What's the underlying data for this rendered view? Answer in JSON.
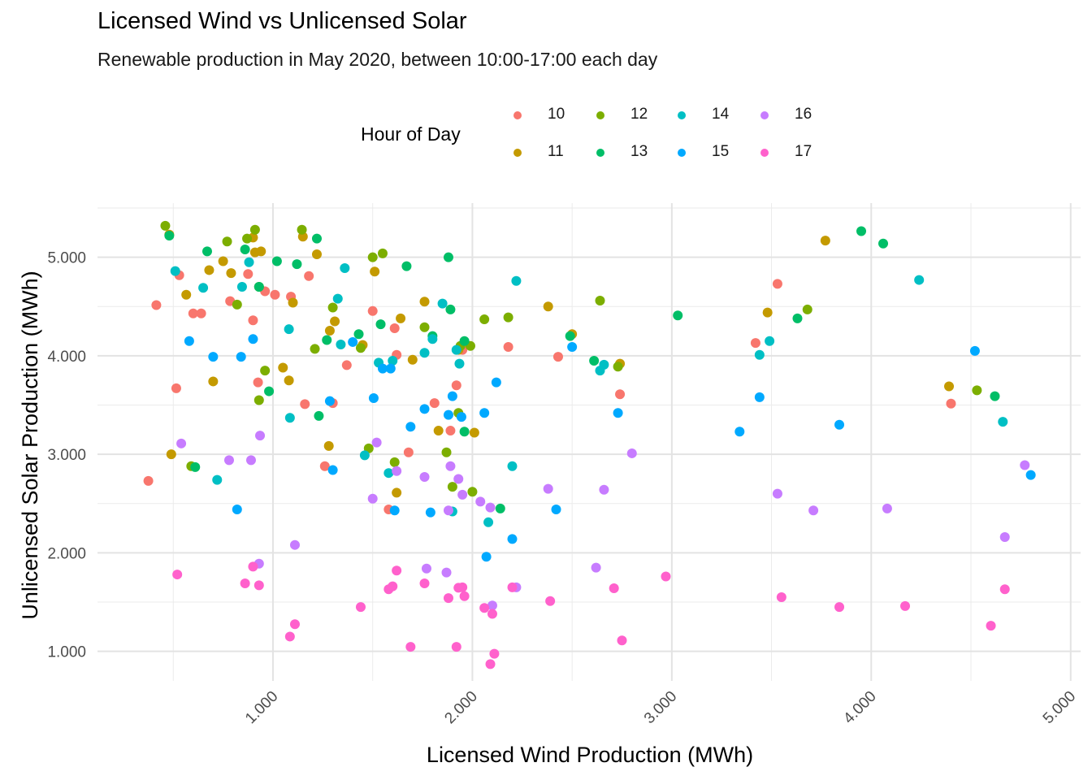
{
  "chart_data": {
    "type": "scatter",
    "title": "Licensed Wind vs Unlicensed Solar",
    "subtitle": "Renewable production in May 2020, between 10:00-17:00 each day",
    "xlabel": "Licensed Wind Production (MWh)",
    "ylabel": "Unlicensed Solar Production (MWh)",
    "xlim": [
      120,
      5050
    ],
    "ylim": [
      700,
      5550
    ],
    "x_ticks": [
      1000,
      2000,
      3000,
      4000,
      5000
    ],
    "x_tick_labels": [
      "1.000",
      "2.000",
      "3.000",
      "4.000",
      "5.000"
    ],
    "y_ticks": [
      1000,
      2000,
      3000,
      4000,
      5000
    ],
    "y_tick_labels": [
      "1.000",
      "2.000",
      "3.000",
      "4.000",
      "5.000"
    ],
    "grid": true,
    "legend": {
      "title": "Hour of Day",
      "position": "top",
      "items": [
        {
          "label": "10",
          "color": "#F8766D"
        },
        {
          "label": "11",
          "color": "#C49A00"
        },
        {
          "label": "12",
          "color": "#7CAE00"
        },
        {
          "label": "13",
          "color": "#00BE67"
        },
        {
          "label": "14",
          "color": "#00BFC4"
        },
        {
          "label": "15",
          "color": "#00A9FF"
        },
        {
          "label": "16",
          "color": "#C77CFF"
        },
        {
          "label": "17",
          "color": "#FF61CC"
        }
      ]
    },
    "series": [
      {
        "name": "10",
        "color": "#F8766D",
        "points": [
          [
            375,
            2730
          ],
          [
            415,
            4515
          ],
          [
            530,
            4818
          ],
          [
            600,
            4430
          ],
          [
            640,
            4430
          ],
          [
            515,
            3670
          ],
          [
            785,
            4555
          ],
          [
            875,
            4830
          ],
          [
            960,
            4655
          ],
          [
            900,
            4360
          ],
          [
            925,
            3730
          ],
          [
            1010,
            4620
          ],
          [
            1090,
            4600
          ],
          [
            1180,
            4810
          ],
          [
            1160,
            3510
          ],
          [
            1260,
            2880
          ],
          [
            1300,
            3520
          ],
          [
            1370,
            3905
          ],
          [
            1500,
            4455
          ],
          [
            1610,
            4280
          ],
          [
            1620,
            4010
          ],
          [
            1580,
            2440
          ],
          [
            1680,
            3020
          ],
          [
            1810,
            3520
          ],
          [
            1890,
            3240
          ],
          [
            1920,
            3700
          ],
          [
            1950,
            4060
          ],
          [
            2180,
            4090
          ],
          [
            2430,
            3990
          ],
          [
            2740,
            3610
          ],
          [
            3420,
            4130
          ],
          [
            3530,
            4730
          ],
          [
            4400,
            3515
          ]
        ]
      },
      {
        "name": "11",
        "color": "#C49A00",
        "points": [
          [
            480,
            5230
          ],
          [
            490,
            3000
          ],
          [
            565,
            4620
          ],
          [
            680,
            4870
          ],
          [
            700,
            3740
          ],
          [
            750,
            4960
          ],
          [
            790,
            4840
          ],
          [
            900,
            5200
          ],
          [
            910,
            5050
          ],
          [
            940,
            5060
          ],
          [
            1050,
            3880
          ],
          [
            1080,
            3750
          ],
          [
            1100,
            4540
          ],
          [
            1150,
            5210
          ],
          [
            1220,
            5030
          ],
          [
            1285,
            4255
          ],
          [
            1310,
            4350
          ],
          [
            1280,
            3085
          ],
          [
            1450,
            4110
          ],
          [
            1510,
            4855
          ],
          [
            1640,
            4380
          ],
          [
            1700,
            3960
          ],
          [
            1760,
            4550
          ],
          [
            1830,
            3240
          ],
          [
            1930,
            4060
          ],
          [
            2010,
            3220
          ],
          [
            2380,
            4500
          ],
          [
            2500,
            4220
          ],
          [
            2740,
            3920
          ],
          [
            3480,
            4440
          ],
          [
            3770,
            5170
          ],
          [
            4390,
            3690
          ],
          [
            1620,
            2610
          ]
        ]
      },
      {
        "name": "12",
        "color": "#7CAE00",
        "points": [
          [
            460,
            5320
          ],
          [
            590,
            2880
          ],
          [
            770,
            5160
          ],
          [
            820,
            4520
          ],
          [
            870,
            5190
          ],
          [
            910,
            5280
          ],
          [
            930,
            4700
          ],
          [
            930,
            3550
          ],
          [
            960,
            3850
          ],
          [
            1145,
            5280
          ],
          [
            1210,
            4070
          ],
          [
            1300,
            4490
          ],
          [
            1440,
            4080
          ],
          [
            1480,
            3060
          ],
          [
            1500,
            5000
          ],
          [
            1550,
            5040
          ],
          [
            1610,
            2920
          ],
          [
            1760,
            4290
          ],
          [
            1900,
            2670
          ],
          [
            1870,
            3020
          ],
          [
            1930,
            3420
          ],
          [
            1940,
            4100
          ],
          [
            2060,
            4370
          ],
          [
            2000,
            2620
          ],
          [
            2180,
            4390
          ],
          [
            2640,
            4560
          ],
          [
            2730,
            3890
          ],
          [
            3680,
            4470
          ],
          [
            4530,
            3650
          ],
          [
            1990,
            4100
          ]
        ]
      },
      {
        "name": "13",
        "color": "#00BE67",
        "points": [
          [
            480,
            5220
          ],
          [
            610,
            2870
          ],
          [
            670,
            5060
          ],
          [
            860,
            5080
          ],
          [
            930,
            4700
          ],
          [
            980,
            3640
          ],
          [
            1020,
            4960
          ],
          [
            1120,
            4930
          ],
          [
            1220,
            5190
          ],
          [
            1230,
            3390
          ],
          [
            1270,
            4160
          ],
          [
            1430,
            4220
          ],
          [
            1540,
            4320
          ],
          [
            1670,
            4910
          ],
          [
            1800,
            4200
          ],
          [
            1880,
            5000
          ],
          [
            1890,
            4470
          ],
          [
            1960,
            4150
          ],
          [
            1960,
            3230
          ],
          [
            2140,
            2450
          ],
          [
            2490,
            4200
          ],
          [
            2610,
            3950
          ],
          [
            3030,
            4410
          ],
          [
            3630,
            4380
          ],
          [
            3950,
            5265
          ],
          [
            4060,
            5140
          ],
          [
            4620,
            3590
          ]
        ]
      },
      {
        "name": "14",
        "color": "#00BFC4",
        "points": [
          [
            510,
            4860
          ],
          [
            650,
            4690
          ],
          [
            720,
            2740
          ],
          [
            845,
            4700
          ],
          [
            880,
            4950
          ],
          [
            1080,
            4270
          ],
          [
            1085,
            3370
          ],
          [
            1325,
            4580
          ],
          [
            1340,
            4115
          ],
          [
            1360,
            4890
          ],
          [
            1460,
            2990
          ],
          [
            1530,
            3930
          ],
          [
            1580,
            2810
          ],
          [
            1600,
            3950
          ],
          [
            1760,
            4030
          ],
          [
            1800,
            4170
          ],
          [
            1850,
            4530
          ],
          [
            1900,
            2420
          ],
          [
            1920,
            4060
          ],
          [
            1935,
            3920
          ],
          [
            2080,
            2310
          ],
          [
            2200,
            2880
          ],
          [
            2220,
            4760
          ],
          [
            2640,
            3850
          ],
          [
            2660,
            3910
          ],
          [
            3440,
            4010
          ],
          [
            3490,
            4150
          ],
          [
            4240,
            4770
          ],
          [
            4660,
            3330
          ]
        ]
      },
      {
        "name": "15",
        "color": "#00A9FF",
        "points": [
          [
            580,
            4150
          ],
          [
            700,
            3990
          ],
          [
            820,
            2440
          ],
          [
            840,
            3990
          ],
          [
            900,
            4170
          ],
          [
            1285,
            3540
          ],
          [
            1300,
            2840
          ],
          [
            1400,
            4140
          ],
          [
            1505,
            3570
          ],
          [
            1550,
            3870
          ],
          [
            1590,
            3870
          ],
          [
            1610,
            2430
          ],
          [
            1690,
            3280
          ],
          [
            1760,
            3460
          ],
          [
            1790,
            2410
          ],
          [
            1880,
            3400
          ],
          [
            1900,
            3590
          ],
          [
            1945,
            3380
          ],
          [
            2060,
            3420
          ],
          [
            2070,
            1960
          ],
          [
            2120,
            3730
          ],
          [
            2200,
            2140
          ],
          [
            2420,
            2440
          ],
          [
            2500,
            4090
          ],
          [
            2730,
            3420
          ],
          [
            3340,
            3230
          ],
          [
            3440,
            3580
          ],
          [
            3840,
            3300
          ],
          [
            4520,
            4050
          ],
          [
            4800,
            2790
          ]
        ]
      },
      {
        "name": "16",
        "color": "#C77CFF",
        "points": [
          [
            540,
            3110
          ],
          [
            780,
            2940
          ],
          [
            890,
            2940
          ],
          [
            930,
            1890
          ],
          [
            935,
            3190
          ],
          [
            1110,
            2080
          ],
          [
            1500,
            2550
          ],
          [
            1520,
            3120
          ],
          [
            1620,
            2830
          ],
          [
            1760,
            2770
          ],
          [
            1770,
            1840
          ],
          [
            1870,
            1800
          ],
          [
            1880,
            2430
          ],
          [
            1890,
            2880
          ],
          [
            1930,
            2750
          ],
          [
            1950,
            2590
          ],
          [
            2040,
            2520
          ],
          [
            2090,
            2460
          ],
          [
            2100,
            1465
          ],
          [
            2220,
            1650
          ],
          [
            2380,
            2650
          ],
          [
            2620,
            1850
          ],
          [
            2660,
            2640
          ],
          [
            2800,
            3010
          ],
          [
            3530,
            2600
          ],
          [
            3710,
            2430
          ],
          [
            4080,
            2450
          ],
          [
            4770,
            2890
          ],
          [
            4670,
            2160
          ]
        ]
      },
      {
        "name": "17",
        "color": "#FF61CC",
        "points": [
          [
            520,
            1780
          ],
          [
            860,
            1690
          ],
          [
            900,
            1860
          ],
          [
            930,
            1670
          ],
          [
            1085,
            1150
          ],
          [
            1110,
            1275
          ],
          [
            1440,
            1450
          ],
          [
            1580,
            1630
          ],
          [
            1600,
            1660
          ],
          [
            1620,
            1820
          ],
          [
            1690,
            1045
          ],
          [
            1760,
            1690
          ],
          [
            1880,
            1540
          ],
          [
            1920,
            1045
          ],
          [
            1930,
            1645
          ],
          [
            1950,
            1650
          ],
          [
            1960,
            1560
          ],
          [
            2060,
            1440
          ],
          [
            2090,
            870
          ],
          [
            2100,
            1380
          ],
          [
            2110,
            975
          ],
          [
            2200,
            1650
          ],
          [
            2390,
            1510
          ],
          [
            2710,
            1640
          ],
          [
            2750,
            1110
          ],
          [
            2970,
            1760
          ],
          [
            3550,
            1550
          ],
          [
            3840,
            1450
          ],
          [
            4170,
            1460
          ],
          [
            4600,
            1260
          ],
          [
            4670,
            1630
          ]
        ]
      }
    ]
  }
}
